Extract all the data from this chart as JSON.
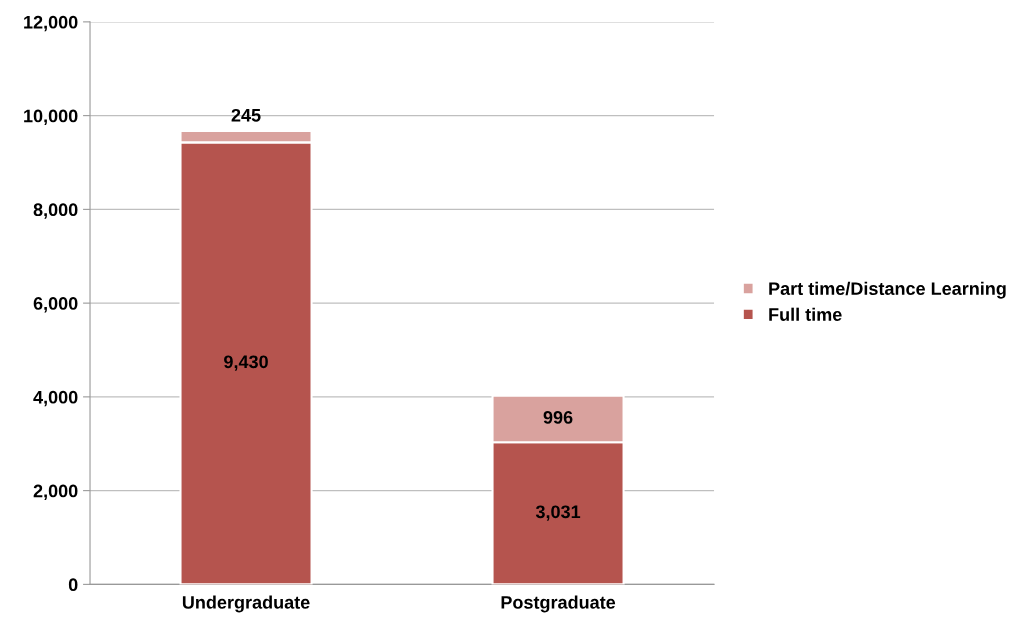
{
  "chart_data": {
    "type": "bar",
    "stacked": true,
    "categories": [
      "Undergraduate",
      "Postgraduate"
    ],
    "series": [
      {
        "name": "Full time",
        "color": "#b5544e",
        "values": [
          9430,
          3031
        ],
        "value_labels": [
          "9,430",
          "3,031"
        ]
      },
      {
        "name": "Part time/Distance Learning",
        "color": "#d9a29e",
        "values": [
          245,
          996
        ],
        "value_labels": [
          "245",
          "996"
        ]
      }
    ],
    "ylim": [
      0,
      12000
    ],
    "yticks": [
      {
        "value": 0,
        "label": "0"
      },
      {
        "value": 2000,
        "label": "2,000"
      },
      {
        "value": 4000,
        "label": "4,000"
      },
      {
        "value": 6000,
        "label": "6,000"
      },
      {
        "value": 8000,
        "label": "8,000"
      },
      {
        "value": 10000,
        "label": "10,000"
      },
      {
        "value": 12000,
        "label": "12,000"
      }
    ],
    "grid": "y",
    "legend": "right"
  }
}
